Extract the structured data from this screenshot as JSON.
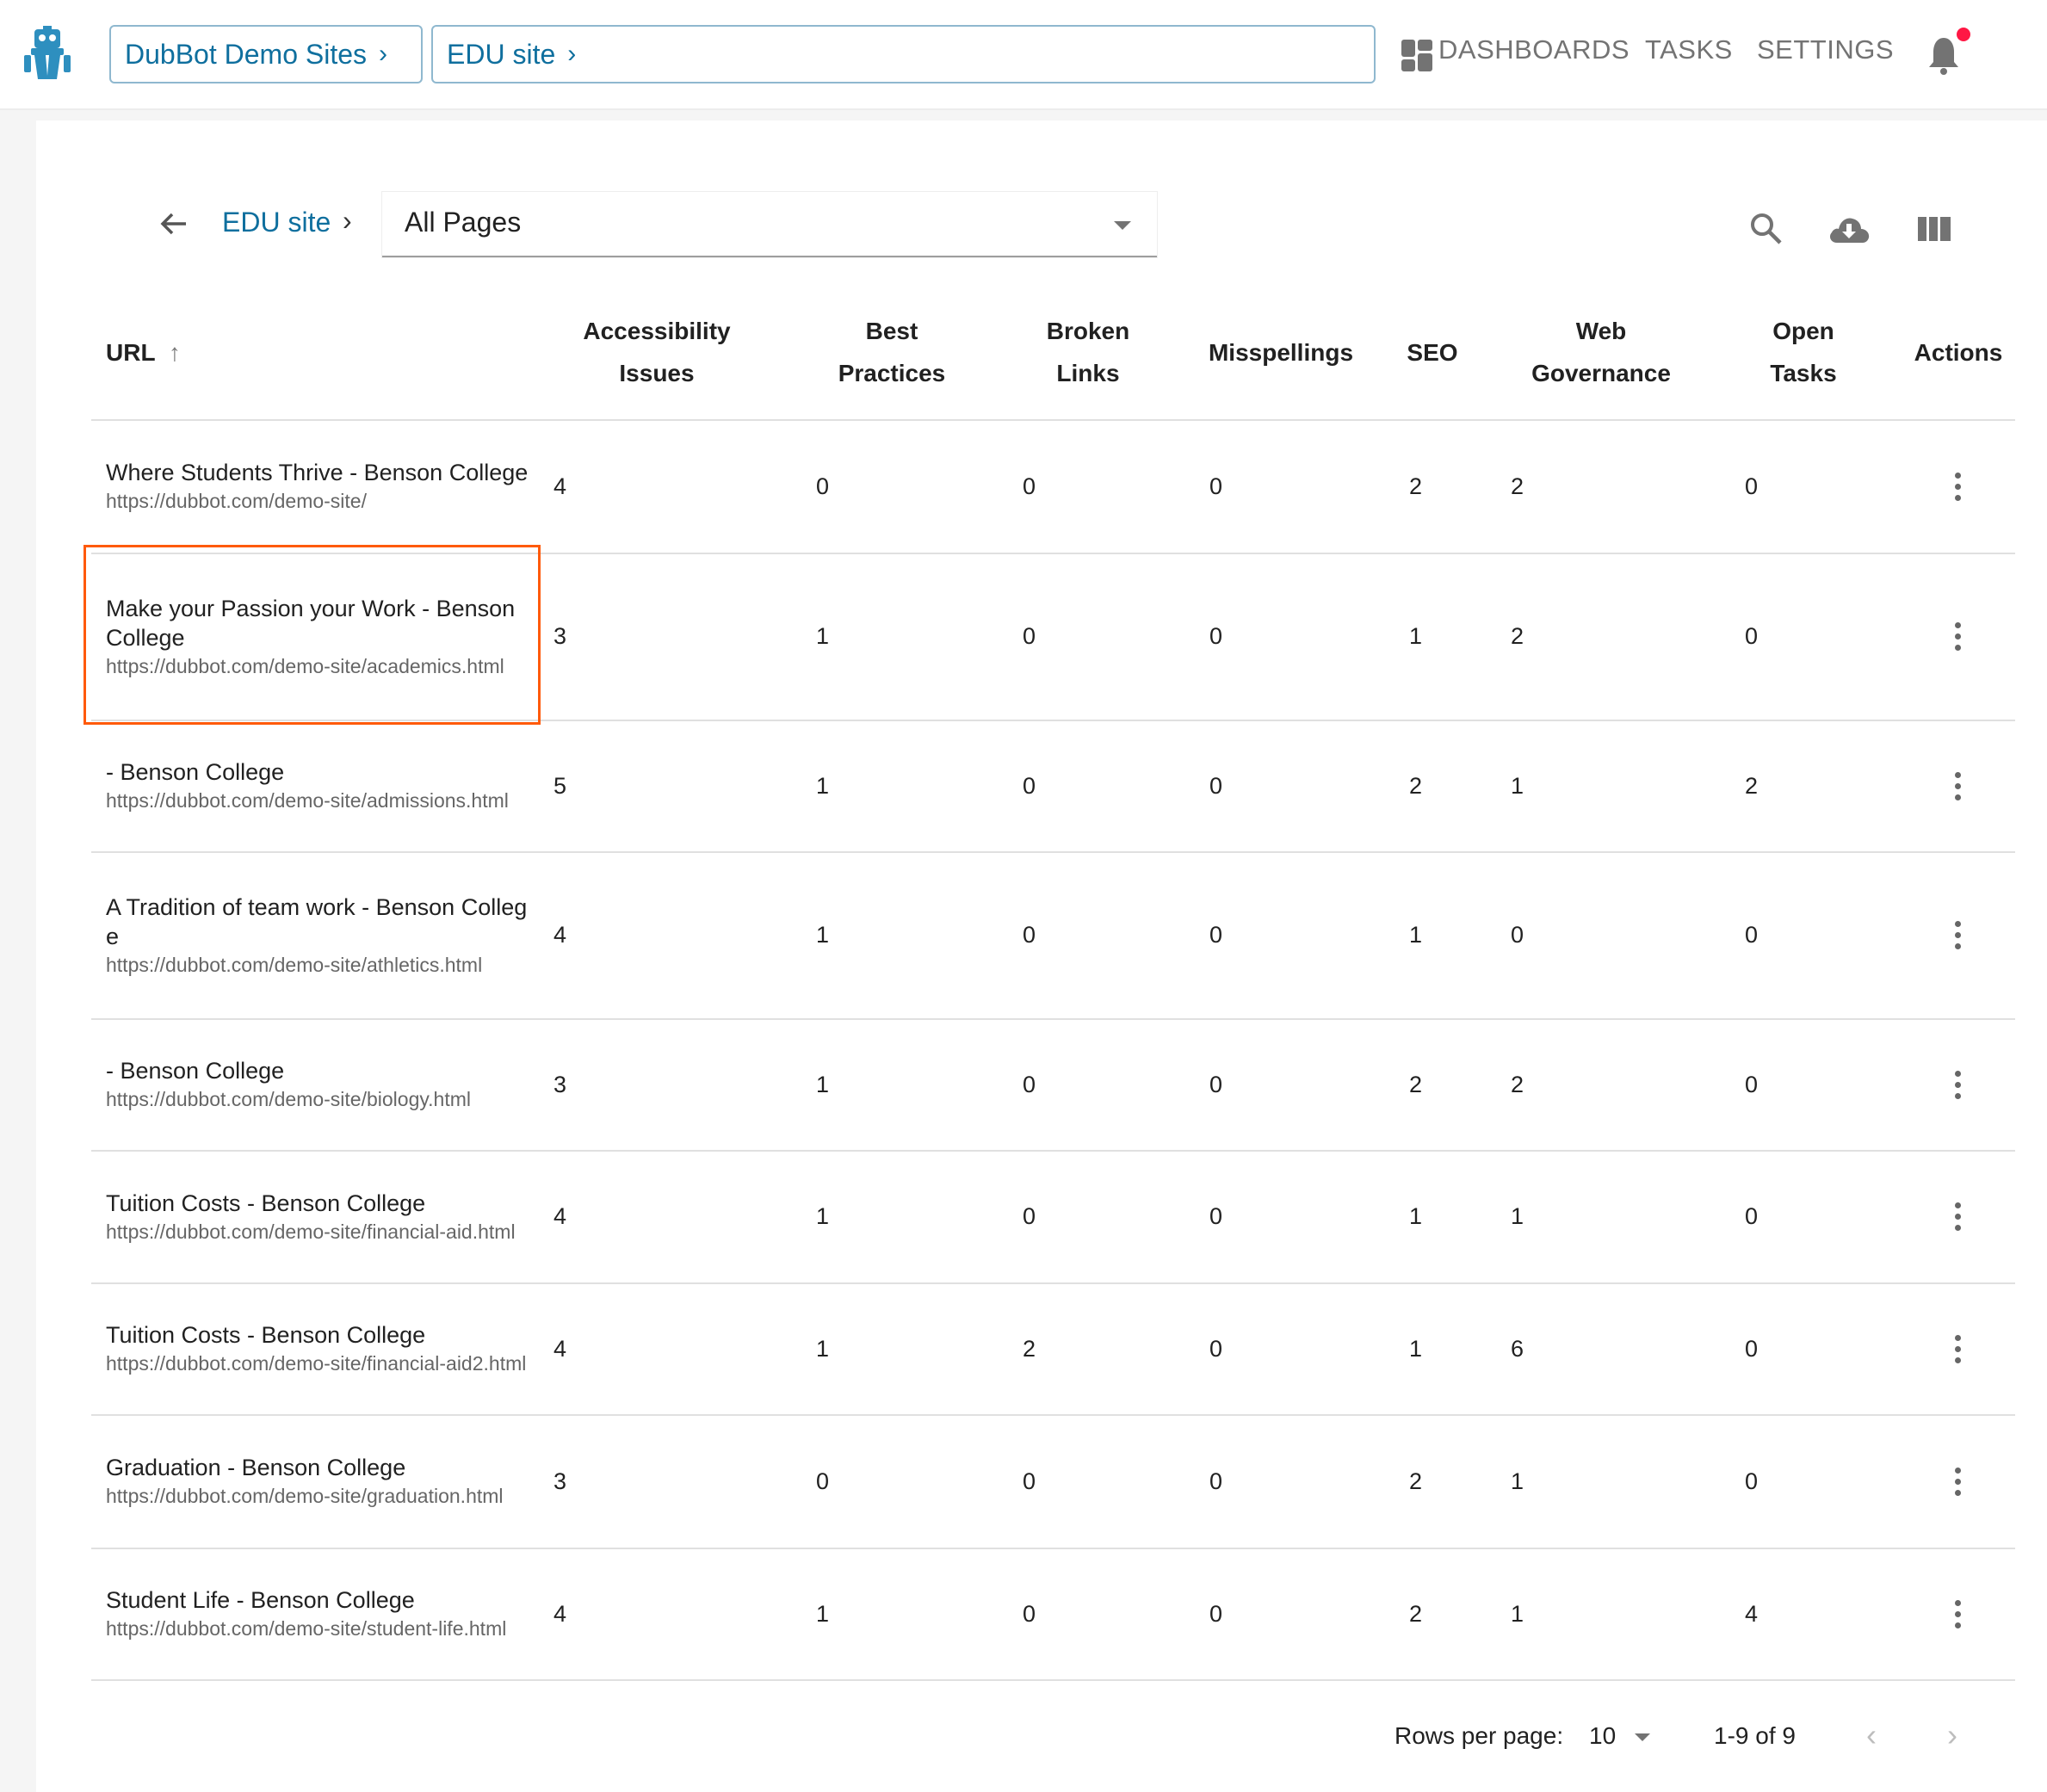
{
  "header": {
    "breadcrumbs": [
      {
        "label": "DubBot Demo Sites"
      },
      {
        "label": "EDU site"
      }
    ],
    "nav": [
      {
        "label": "DASHBOARDS",
        "icon": "dashboard-grid-icon"
      },
      {
        "label": "TASKS"
      },
      {
        "label": "SETTINGS"
      }
    ],
    "notification_icon": "bell-icon",
    "notification_dot_color": "#ff1744",
    "brand_color": "#0f6f9e"
  },
  "toolbar": {
    "back_icon": "arrow-left-icon",
    "site_link": "EDU site",
    "page_filter": "All Pages",
    "icons": [
      "search-icon",
      "cloud-download-icon",
      "columns-icon"
    ]
  },
  "table": {
    "columns": [
      {
        "label": "URL",
        "sort": "ascending"
      },
      {
        "label": "Accessibility Issues"
      },
      {
        "label": "Best Practices"
      },
      {
        "label": "Broken Links"
      },
      {
        "label": "Misspellings"
      },
      {
        "label": "SEO"
      },
      {
        "label": "Web Governance"
      },
      {
        "label": "Open Tasks"
      },
      {
        "label": "Actions"
      }
    ],
    "rows": [
      {
        "title": "Where Students Thrive - Benson College",
        "url": "https://dubbot.com/demo-site/",
        "values": [
          4,
          0,
          0,
          0,
          2,
          2,
          0
        ]
      },
      {
        "title": "Make your Passion your Work - Benson College",
        "url": "https://dubbot.com/demo-site/academics.html",
        "values": [
          3,
          1,
          0,
          0,
          1,
          2,
          0
        ],
        "highlighted": true
      },
      {
        "title": "- Benson College",
        "url": "https://dubbot.com/demo-site/admissions.html",
        "values": [
          5,
          1,
          0,
          0,
          2,
          1,
          2
        ]
      },
      {
        "title": "A Tradition of team work - Benson College",
        "url": "https://dubbot.com/demo-site/athletics.html",
        "values": [
          4,
          1,
          0,
          0,
          1,
          0,
          0
        ]
      },
      {
        "title": "- Benson College",
        "url": "https://dubbot.com/demo-site/biology.html",
        "values": [
          3,
          1,
          0,
          0,
          2,
          2,
          0
        ]
      },
      {
        "title": "Tuition Costs - Benson College",
        "url": "https://dubbot.com/demo-site/financial-aid.html",
        "values": [
          4,
          1,
          0,
          0,
          1,
          1,
          0
        ]
      },
      {
        "title": "Tuition Costs - Benson College",
        "url": "https://dubbot.com/demo-site/financial-aid2.html",
        "values": [
          4,
          1,
          2,
          0,
          1,
          6,
          0
        ]
      },
      {
        "title": "Graduation - Benson College",
        "url": "https://dubbot.com/demo-site/graduation.html",
        "values": [
          3,
          0,
          0,
          0,
          2,
          1,
          0
        ]
      },
      {
        "title": "Student Life - Benson College",
        "url": "https://dubbot.com/demo-site/student-life.html",
        "values": [
          4,
          1,
          0,
          0,
          2,
          1,
          4
        ]
      }
    ],
    "highlight_color": "#ff5a0a"
  },
  "pagination": {
    "rows_per_page_label": "Rows per page:",
    "rows_per_page": "10",
    "range": "1-9 of 9"
  }
}
